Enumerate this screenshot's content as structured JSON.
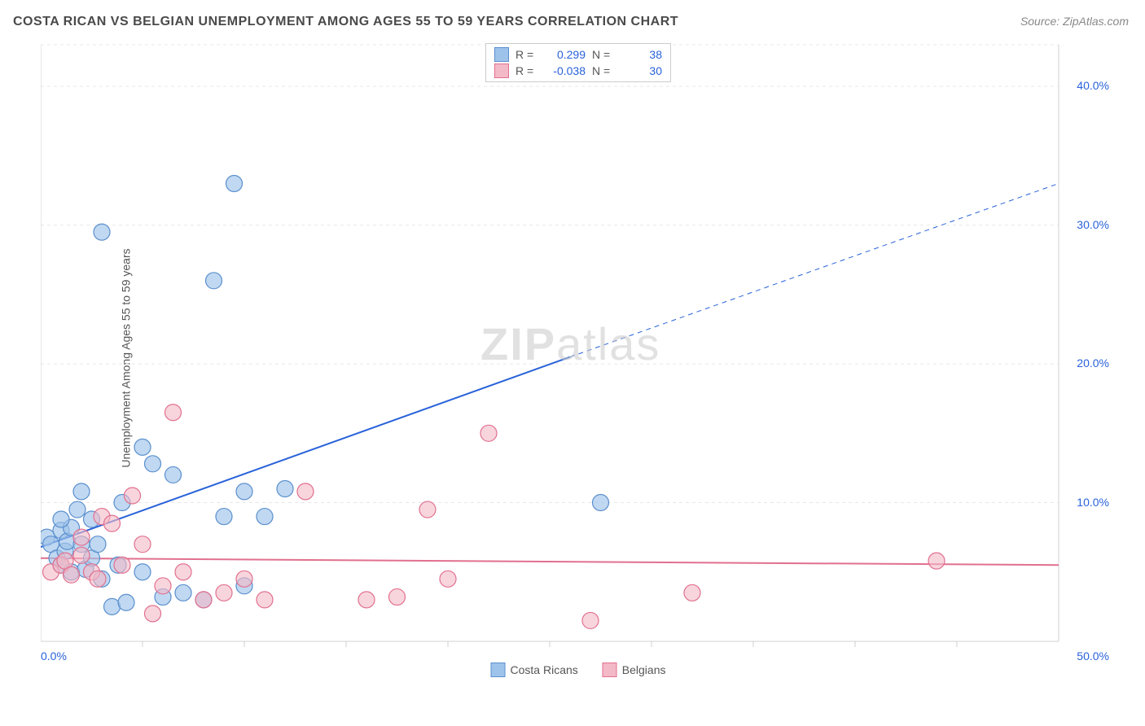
{
  "title": "COSTA RICAN VS BELGIAN UNEMPLOYMENT AMONG AGES 55 TO 59 YEARS CORRELATION CHART",
  "source_prefix": "Source: ",
  "source_name": "ZipAtlas.com",
  "y_axis_label": "Unemployment Among Ages 55 to 59 years",
  "watermark_bold": "ZIP",
  "watermark_rest": "atlas",
  "chart": {
    "type": "scatter",
    "background_color": "#ffffff",
    "grid_color": "#e8e8e8",
    "axis_color": "#d0d0d0",
    "tick_label_color": "#2962d9",
    "xlim": [
      0,
      50
    ],
    "ylim": [
      0,
      43
    ],
    "x_ticks": [
      0,
      50
    ],
    "x_tick_labels": [
      "0.0%",
      "50.0%"
    ],
    "y_ticks": [
      10,
      20,
      30,
      40
    ],
    "y_tick_labels": [
      "10.0%",
      "20.0%",
      "30.0%",
      "40.0%"
    ],
    "x_minor_ticks": [
      5,
      10,
      15,
      20,
      25,
      30,
      35,
      40,
      45
    ],
    "series": [
      {
        "name": "Costa Ricans",
        "fill_color": "#9ec3ea",
        "stroke_color": "#5a8fce",
        "marker_radius": 10,
        "marker_opacity": 0.65,
        "correlation_r": "0.299",
        "correlation_n": "38",
        "regression": {
          "x1": 0,
          "y1": 6.8,
          "x2": 26,
          "y2": 20.5,
          "x_dash_end": 50,
          "y_dash_end": 33,
          "color": "#2962d9",
          "width": 2
        },
        "points": [
          {
            "x": 0.3,
            "y": 7.5
          },
          {
            "x": 0.5,
            "y": 7.0
          },
          {
            "x": 0.8,
            "y": 6.0
          },
          {
            "x": 1.0,
            "y": 8.0
          },
          {
            "x": 1.0,
            "y": 5.5
          },
          {
            "x": 1.2,
            "y": 6.5
          },
          {
            "x": 1.3,
            "y": 7.2
          },
          {
            "x": 1.5,
            "y": 8.2
          },
          {
            "x": 1.5,
            "y": 5.0
          },
          {
            "x": 1.8,
            "y": 9.5
          },
          {
            "x": 2.0,
            "y": 7.0
          },
          {
            "x": 2.0,
            "y": 10.8
          },
          {
            "x": 2.2,
            "y": 5.2
          },
          {
            "x": 2.5,
            "y": 8.8
          },
          {
            "x": 2.5,
            "y": 6.0
          },
          {
            "x": 2.8,
            "y": 7.0
          },
          {
            "x": 3.0,
            "y": 4.5
          },
          {
            "x": 3.0,
            "y": 29.5
          },
          {
            "x": 3.5,
            "y": 2.5
          },
          {
            "x": 3.8,
            "y": 5.5
          },
          {
            "x": 4.0,
            "y": 10.0
          },
          {
            "x": 4.2,
            "y": 2.8
          },
          {
            "x": 5.0,
            "y": 14.0
          },
          {
            "x": 5.0,
            "y": 5.0
          },
          {
            "x": 5.5,
            "y": 12.8
          },
          {
            "x": 6.0,
            "y": 3.2
          },
          {
            "x": 6.5,
            "y": 12.0
          },
          {
            "x": 7.0,
            "y": 3.5
          },
          {
            "x": 8.0,
            "y": 3.0
          },
          {
            "x": 8.5,
            "y": 26.0
          },
          {
            "x": 9.0,
            "y": 9.0
          },
          {
            "x": 9.5,
            "y": 33.0
          },
          {
            "x": 10.0,
            "y": 10.8
          },
          {
            "x": 10.0,
            "y": 4.0
          },
          {
            "x": 11.0,
            "y": 9.0
          },
          {
            "x": 12.0,
            "y": 11.0
          },
          {
            "x": 27.5,
            "y": 10.0
          },
          {
            "x": 1.0,
            "y": 8.8
          }
        ]
      },
      {
        "name": "Belgians",
        "fill_color": "#f3b9c6",
        "stroke_color": "#e1708f",
        "marker_radius": 10,
        "marker_opacity": 0.6,
        "correlation_r": "-0.038",
        "correlation_n": "30",
        "regression": {
          "x1": 0,
          "y1": 6.0,
          "x2": 50,
          "y2": 5.5,
          "color": "#e1708f",
          "width": 2
        },
        "points": [
          {
            "x": 0.5,
            "y": 5.0
          },
          {
            "x": 1.0,
            "y": 5.5
          },
          {
            "x": 1.2,
            "y": 5.8
          },
          {
            "x": 1.5,
            "y": 4.8
          },
          {
            "x": 2.0,
            "y": 6.2
          },
          {
            "x": 2.0,
            "y": 7.5
          },
          {
            "x": 2.5,
            "y": 5.0
          },
          {
            "x": 2.8,
            "y": 4.5
          },
          {
            "x": 3.0,
            "y": 9.0
          },
          {
            "x": 3.5,
            "y": 8.5
          },
          {
            "x": 4.0,
            "y": 5.5
          },
          {
            "x": 4.5,
            "y": 10.5
          },
          {
            "x": 5.0,
            "y": 7.0
          },
          {
            "x": 5.5,
            "y": 2.0
          },
          {
            "x": 6.0,
            "y": 4.0
          },
          {
            "x": 6.5,
            "y": 16.5
          },
          {
            "x": 7.0,
            "y": 5.0
          },
          {
            "x": 8.0,
            "y": 3.0
          },
          {
            "x": 9.0,
            "y": 3.5
          },
          {
            "x": 10.0,
            "y": 4.5
          },
          {
            "x": 11.0,
            "y": 3.0
          },
          {
            "x": 13.0,
            "y": 10.8
          },
          {
            "x": 16.0,
            "y": 3.0
          },
          {
            "x": 17.5,
            "y": 3.2
          },
          {
            "x": 19.0,
            "y": 9.5
          },
          {
            "x": 20.0,
            "y": 4.5
          },
          {
            "x": 22.0,
            "y": 15.0
          },
          {
            "x": 27.0,
            "y": 1.5
          },
          {
            "x": 32.0,
            "y": 3.5
          },
          {
            "x": 44.0,
            "y": 5.8
          }
        ]
      }
    ],
    "legend_top": {
      "r_label": "R =",
      "n_label": "N ="
    },
    "legend_bottom_labels": [
      "Costa Ricans",
      "Belgians"
    ]
  }
}
